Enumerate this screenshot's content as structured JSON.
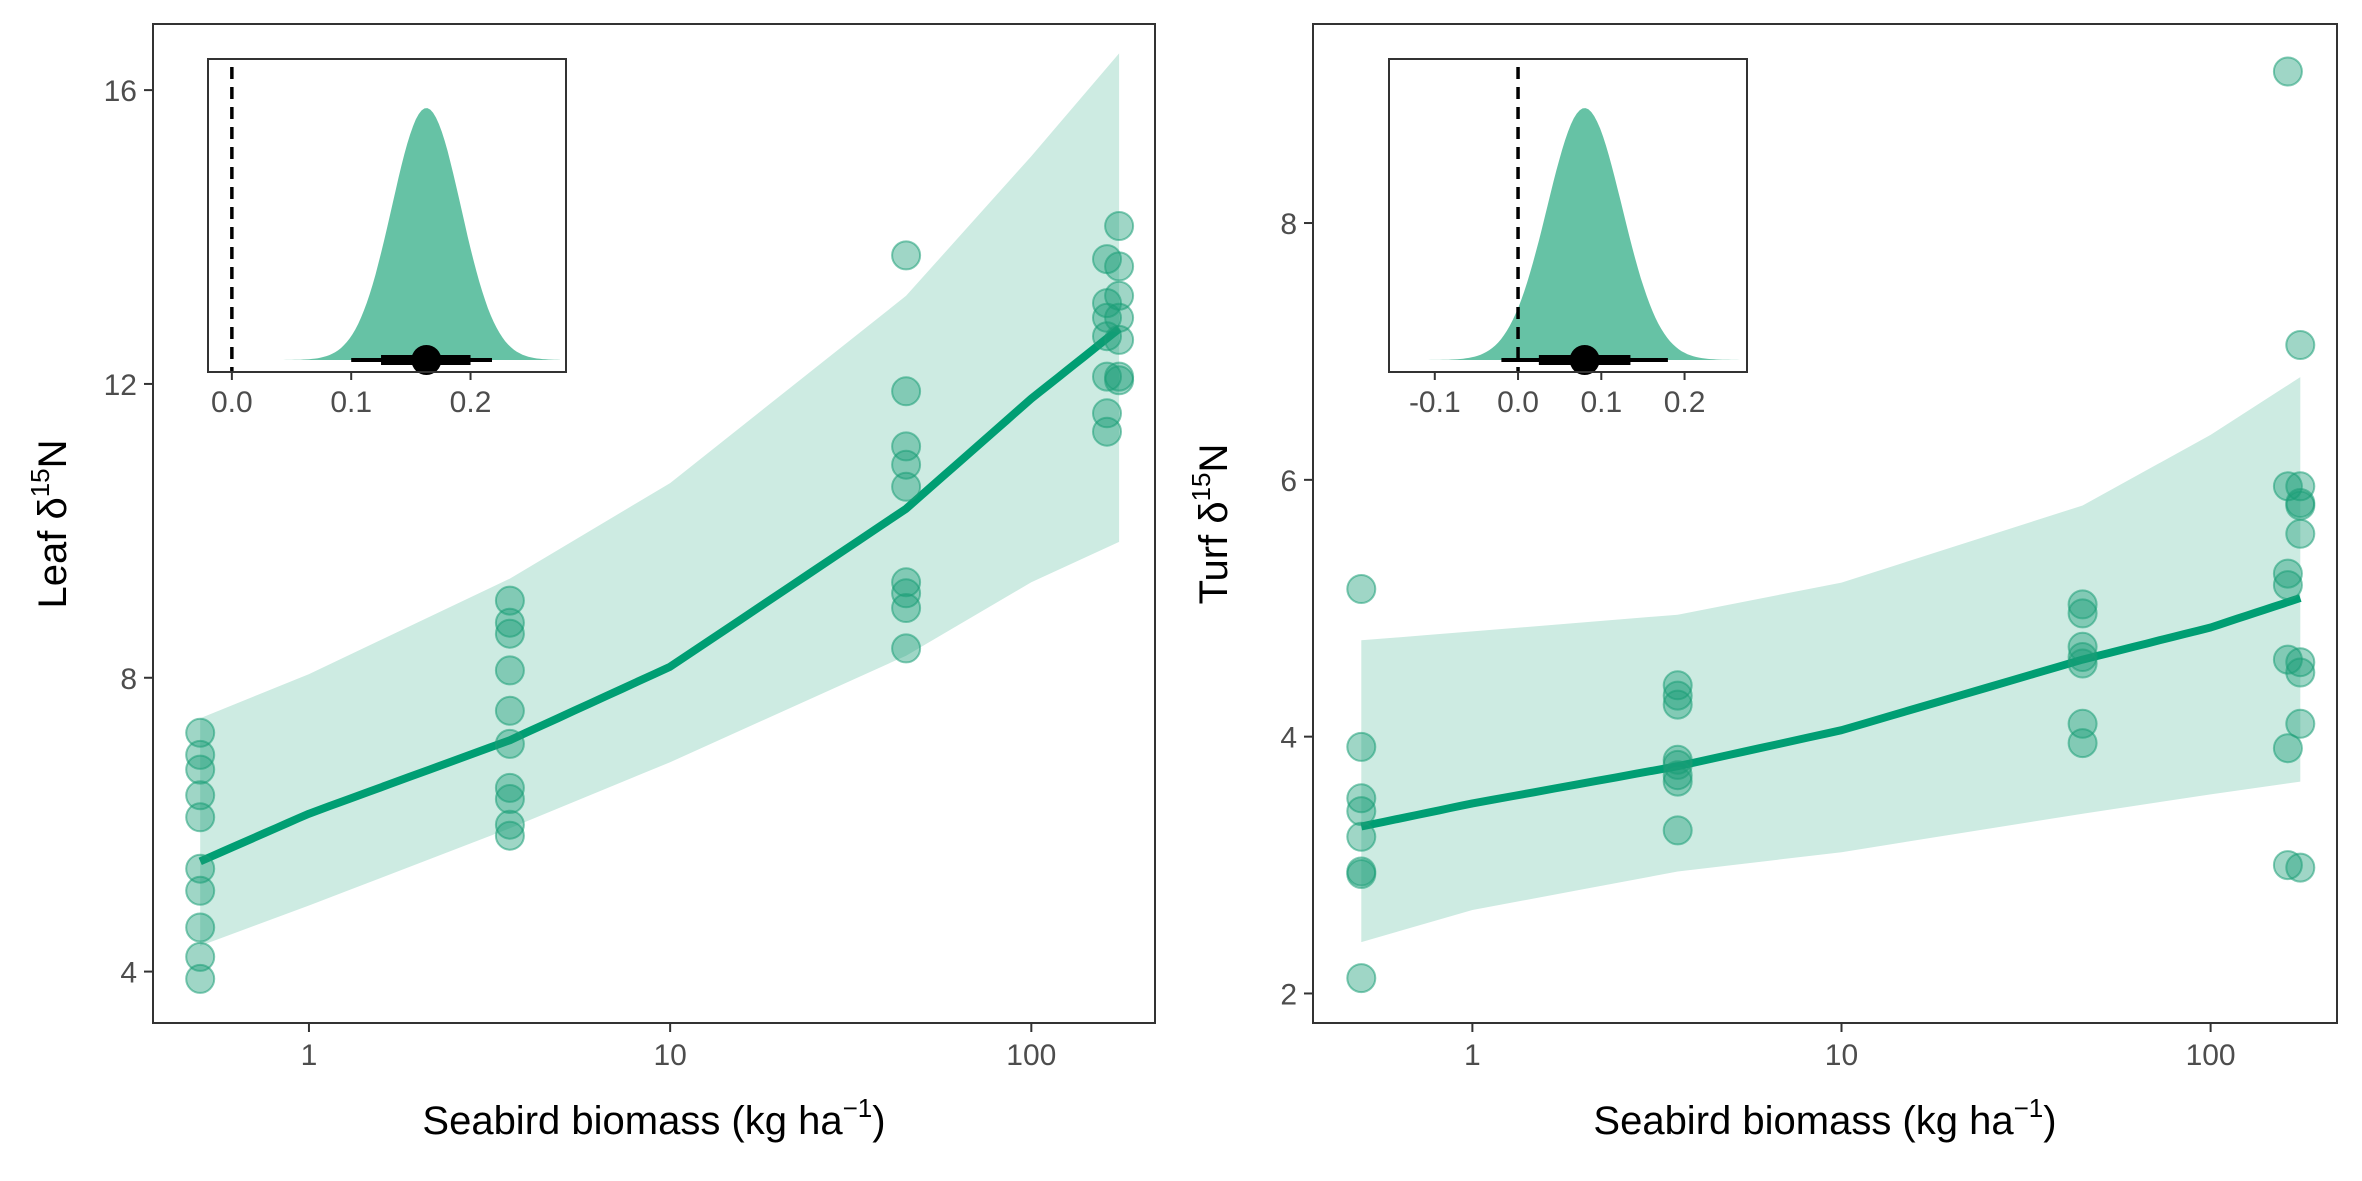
{
  "chart_data": [
    {
      "type": "scatter",
      "panel": "left",
      "xlabel": "Seabird biomass (kg ha",
      "xlabel_sup": "−1",
      "xlabel_suffix": ")",
      "ylabel": "Leaf δ",
      "ylabel_sup": "15",
      "ylabel_suffix": "N",
      "x_scale": "log10",
      "xlim": [
        0.37,
        220
      ],
      "ylim": [
        3.3,
        16.9
      ],
      "x_ticks": [
        1,
        10,
        100
      ],
      "x_tick_labels": [
        "1",
        "10",
        "100"
      ],
      "y_ticks": [
        4,
        8,
        12,
        16
      ],
      "y_tick_labels": [
        "4",
        "8",
        "12",
        "16"
      ],
      "point_color": "#1b9e77",
      "fit_color": "#009E73",
      "ribbon_color": "#cdebe2",
      "points": [
        {
          "x": 0.5,
          "y": 7.25
        },
        {
          "x": 0.5,
          "y": 6.95
        },
        {
          "x": 0.5,
          "y": 6.75
        },
        {
          "x": 0.5,
          "y": 6.4
        },
        {
          "x": 0.5,
          "y": 6.1
        },
        {
          "x": 0.5,
          "y": 5.4
        },
        {
          "x": 0.5,
          "y": 5.1
        },
        {
          "x": 0.5,
          "y": 4.6
        },
        {
          "x": 0.5,
          "y": 4.2
        },
        {
          "x": 0.5,
          "y": 3.9
        },
        {
          "x": 3.6,
          "y": 9.05
        },
        {
          "x": 3.6,
          "y": 8.75
        },
        {
          "x": 3.6,
          "y": 8.6
        },
        {
          "x": 3.6,
          "y": 8.1
        },
        {
          "x": 3.6,
          "y": 7.55
        },
        {
          "x": 3.6,
          "y": 7.1
        },
        {
          "x": 3.6,
          "y": 6.5
        },
        {
          "x": 3.6,
          "y": 6.35
        },
        {
          "x": 3.6,
          "y": 6.0
        },
        {
          "x": 3.6,
          "y": 5.85
        },
        {
          "x": 45,
          "y": 13.75
        },
        {
          "x": 45,
          "y": 11.9
        },
        {
          "x": 45,
          "y": 11.15
        },
        {
          "x": 45,
          "y": 10.9
        },
        {
          "x": 45,
          "y": 10.6
        },
        {
          "x": 45,
          "y": 9.3
        },
        {
          "x": 45,
          "y": 9.15
        },
        {
          "x": 45,
          "y": 8.95
        },
        {
          "x": 45,
          "y": 8.4
        },
        {
          "x": 162,
          "y": 13.7
        },
        {
          "x": 162,
          "y": 13.1
        },
        {
          "x": 162,
          "y": 12.9
        },
        {
          "x": 162,
          "y": 12.65
        },
        {
          "x": 162,
          "y": 12.1
        },
        {
          "x": 162,
          "y": 11.6
        },
        {
          "x": 162,
          "y": 11.35
        },
        {
          "x": 175,
          "y": 14.15
        },
        {
          "x": 175,
          "y": 13.6
        },
        {
          "x": 175,
          "y": 13.2
        },
        {
          "x": 175,
          "y": 12.9
        },
        {
          "x": 175,
          "y": 12.6
        },
        {
          "x": 175,
          "y": 12.1
        },
        {
          "x": 175,
          "y": 12.05
        }
      ],
      "fit": {
        "x": [
          0.5,
          1,
          3.6,
          10,
          45,
          100,
          175
        ],
        "y": [
          5.5,
          6.15,
          7.15,
          8.15,
          10.3,
          11.8,
          12.75
        ]
      },
      "ribbon": {
        "x": [
          0.5,
          1,
          3.6,
          10,
          45,
          100,
          175
        ],
        "lower": [
          4.35,
          4.9,
          5.95,
          6.85,
          8.3,
          9.3,
          9.85
        ],
        "upper": [
          7.45,
          8.05,
          9.35,
          10.65,
          13.2,
          15.1,
          16.5
        ]
      },
      "inset": {
        "xlim": [
          -0.02,
          0.28
        ],
        "x_ticks": [
          0.0,
          0.1,
          0.2
        ],
        "x_tick_labels": [
          "0.0",
          "0.1",
          "0.2"
        ],
        "ref_line_x": 0,
        "density_mean": 0.163,
        "density_sd": 0.029,
        "point_estimate": 0.163,
        "interval_inner": [
          0.125,
          0.2
        ],
        "interval_outer": [
          0.1,
          0.218
        ],
        "fill_color": "#66c2a5"
      }
    },
    {
      "type": "scatter",
      "panel": "right",
      "xlabel": "Seabird biomass (kg ha",
      "xlabel_sup": "−1",
      "xlabel_suffix": ")",
      "ylabel": "Turf δ",
      "ylabel_sup": "15",
      "ylabel_suffix": "N",
      "x_scale": "log10",
      "xlim": [
        0.37,
        220
      ],
      "ylim": [
        1.77,
        9.55
      ],
      "x_ticks": [
        1,
        10,
        100
      ],
      "x_tick_labels": [
        "1",
        "10",
        "100"
      ],
      "y_ticks": [
        2,
        4,
        6,
        8
      ],
      "y_tick_labels": [
        "2",
        "4",
        "6",
        "8"
      ],
      "point_color": "#1b9e77",
      "fit_color": "#009E73",
      "ribbon_color": "#cdebe2",
      "points": [
        {
          "x": 0.5,
          "y": 5.15
        },
        {
          "x": 0.5,
          "y": 3.92
        },
        {
          "x": 0.5,
          "y": 3.52
        },
        {
          "x": 0.5,
          "y": 3.42
        },
        {
          "x": 0.5,
          "y": 3.22
        },
        {
          "x": 0.5,
          "y": 2.95
        },
        {
          "x": 0.5,
          "y": 2.93
        },
        {
          "x": 0.5,
          "y": 2.12
        },
        {
          "x": 3.6,
          "y": 4.4
        },
        {
          "x": 3.6,
          "y": 4.32
        },
        {
          "x": 3.6,
          "y": 4.25
        },
        {
          "x": 3.6,
          "y": 3.82
        },
        {
          "x": 3.6,
          "y": 3.78
        },
        {
          "x": 3.6,
          "y": 3.7
        },
        {
          "x": 3.6,
          "y": 3.65
        },
        {
          "x": 3.6,
          "y": 3.27
        },
        {
          "x": 45,
          "y": 5.03
        },
        {
          "x": 45,
          "y": 4.96
        },
        {
          "x": 45,
          "y": 4.7
        },
        {
          "x": 45,
          "y": 4.62
        },
        {
          "x": 45,
          "y": 4.57
        },
        {
          "x": 45,
          "y": 4.1
        },
        {
          "x": 45,
          "y": 3.95
        },
        {
          "x": 162,
          "y": 9.18
        },
        {
          "x": 162,
          "y": 5.95
        },
        {
          "x": 162,
          "y": 5.27
        },
        {
          "x": 162,
          "y": 5.18
        },
        {
          "x": 162,
          "y": 4.6
        },
        {
          "x": 162,
          "y": 3.91
        },
        {
          "x": 162,
          "y": 3.0
        },
        {
          "x": 175,
          "y": 7.05
        },
        {
          "x": 175,
          "y": 5.95
        },
        {
          "x": 175,
          "y": 5.82
        },
        {
          "x": 175,
          "y": 5.8
        },
        {
          "x": 175,
          "y": 5.58
        },
        {
          "x": 175,
          "y": 4.58
        },
        {
          "x": 175,
          "y": 4.5
        },
        {
          "x": 175,
          "y": 4.1
        },
        {
          "x": 175,
          "y": 2.98
        }
      ],
      "fit": {
        "x": [
          0.5,
          1,
          3.6,
          10,
          45,
          100,
          175
        ],
        "y": [
          3.3,
          3.48,
          3.77,
          4.05,
          4.6,
          4.85,
          5.08
        ]
      },
      "ribbon": {
        "x": [
          0.5,
          1,
          3.6,
          10,
          45,
          100,
          175
        ],
        "lower": [
          2.4,
          2.65,
          2.95,
          3.1,
          3.4,
          3.55,
          3.65
        ],
        "upper": [
          4.75,
          4.82,
          4.95,
          5.2,
          5.8,
          6.35,
          6.8
        ]
      },
      "inset": {
        "xlim": [
          -0.155,
          0.275
        ],
        "x_ticks": [
          -0.1,
          0.0,
          0.1,
          0.2
        ],
        "x_tick_labels": [
          "-0.1",
          "0.0",
          "0.1",
          "0.2"
        ],
        "ref_line_x": 0,
        "density_mean": 0.08,
        "density_sd": 0.045,
        "point_estimate": 0.08,
        "interval_inner": [
          0.025,
          0.135
        ],
        "interval_outer": [
          -0.02,
          0.18
        ],
        "fill_color": "#66c2a5"
      }
    }
  ]
}
